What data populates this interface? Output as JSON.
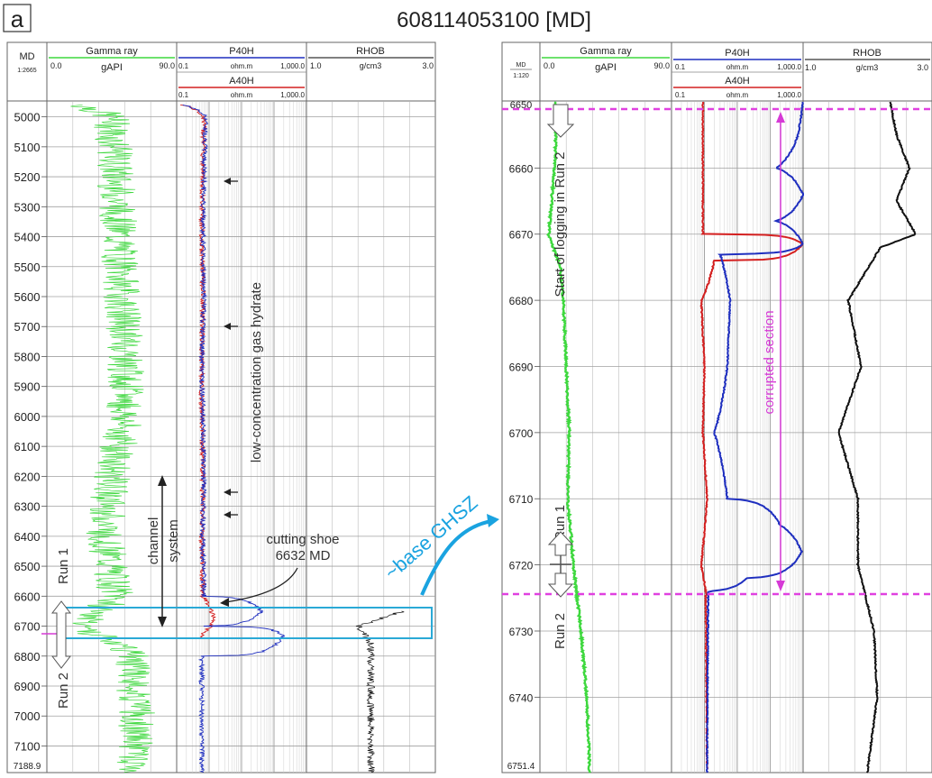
{
  "panel_label": "a",
  "title": "608114053100 [MD]",
  "colors": {
    "gamma": "#3ed83e",
    "p40h": "#1f2fbf",
    "a40h": "#d42020",
    "rhob": "#000000",
    "highlight_box": "#2aa9d6",
    "arrow_cyan": "#1aa3e0",
    "corrupted": "#d63ad6",
    "grid": "#9a9a9a"
  },
  "headers": {
    "md": "MD",
    "gamma_title": "Gamma ray",
    "gamma_unit": "gAPI",
    "gamma_min": "0.0",
    "gamma_max": "90.0",
    "p40h_title": "P40H",
    "a40h_title": "A40H",
    "res_unit": "ohm.m",
    "res_min": "0.1",
    "res_max": "1,000.0",
    "rhob_title": "RHOB",
    "rhob_unit": "g/cm3",
    "rhob_min": "1.0",
    "rhob_max": "3.0"
  },
  "left": {
    "scale": "1:2665",
    "depth_ticks": [
      "5000",
      "5100",
      "5200",
      "5300",
      "5400",
      "5500",
      "5600",
      "5700",
      "5800",
      "5900",
      "6000",
      "6100",
      "6200",
      "6300",
      "6400",
      "6500",
      "6600",
      "6700",
      "6800",
      "6900",
      "7000",
      "7100"
    ],
    "bottom_depth": "7188.9",
    "annotations": {
      "hydrate": "low-concentration gas hydrate",
      "channel": "channel",
      "system": "system",
      "shoe_1": "cutting shoe",
      "shoe_2": "6632 MD",
      "run1": "Run 1",
      "run2": "Run 2",
      "ghsz": "~base GHSZ"
    }
  },
  "right": {
    "scale": "1:120",
    "top_depth": "6650",
    "depth_ticks": [
      "6660",
      "6670",
      "6680",
      "6690",
      "6700",
      "6710",
      "6720",
      "6730",
      "6740"
    ],
    "bottom_depth": "6751.4",
    "annotations": {
      "start_logging": "Start of logging in Run 2",
      "corrupted": "corrupted section",
      "run1": "Run 1",
      "run2": "Run 2"
    }
  },
  "chart_data": [
    {
      "type": "line",
      "title": "608114053100 [MD]",
      "y_axis": "MD",
      "ylim": [
        4950,
        7188.9
      ],
      "series": [
        {
          "name": "Gamma ray",
          "unit": "gAPI",
          "xlim": [
            0,
            90
          ],
          "y": [
            4960,
            5000,
            5200,
            5400,
            5600,
            5800,
            6000,
            6200,
            6400,
            6600,
            6700,
            6800,
            7000,
            7188
          ],
          "x": [
            25,
            45,
            48,
            50,
            52,
            55,
            54,
            45,
            40,
            48,
            25,
            60,
            62,
            60
          ]
        },
        {
          "name": "P40H",
          "unit": "ohm.m",
          "scale": "log",
          "xlim": [
            0.1,
            1000
          ],
          "y": [
            4960,
            5000,
            5200,
            5400,
            5600,
            5800,
            6000,
            6200,
            6400,
            6600,
            6650,
            6700,
            6730,
            6800,
            7188
          ],
          "x": [
            0.15,
            0.8,
            0.7,
            0.65,
            0.7,
            0.6,
            0.65,
            0.7,
            0.65,
            0.7,
            40,
            0.8,
            200,
            0.6,
            0.6
          ]
        },
        {
          "name": "A40H",
          "unit": "ohm.m",
          "scale": "log",
          "xlim": [
            0.1,
            1000
          ],
          "y": [
            4960,
            5000,
            5200,
            5400,
            5600,
            5800,
            6000,
            6200,
            6400,
            6600,
            6680,
            6720,
            6740
          ],
          "x": [
            0.15,
            0.7,
            0.65,
            0.6,
            0.65,
            0.6,
            0.6,
            0.65,
            0.6,
            0.65,
            1.5,
            0.7,
            0.6
          ]
        },
        {
          "name": "RHOB",
          "unit": "g/cm3",
          "xlim": [
            1.0,
            3.0
          ],
          "y": [
            6650,
            6700,
            6760,
            7188
          ],
          "x": [
            2.5,
            1.8,
            2.0,
            2.0
          ]
        }
      ],
      "annotations": [
        "low-concentration gas hydrate",
        "channel system",
        "cutting shoe 6632 MD",
        "Run 1",
        "Run 2",
        "~base GHSZ"
      ]
    },
    {
      "type": "line",
      "y_axis": "MD",
      "ylim": [
        6650,
        6751.4
      ],
      "series": [
        {
          "name": "Gamma ray",
          "unit": "gAPI",
          "xlim": [
            0,
            90
          ],
          "y": [
            6650,
            6655,
            6660,
            6665,
            6670,
            6675,
            6680,
            6690,
            6700,
            6710,
            6720,
            6730,
            6740,
            6751
          ],
          "x": [
            11,
            11,
            10,
            8,
            6,
            14,
            16,
            18,
            20,
            19,
            23,
            28,
            32,
            34
          ]
        },
        {
          "name": "P40H",
          "unit": "ohm.m",
          "scale": "log",
          "xlim": [
            0.1,
            1000
          ],
          "y": [
            6650,
            6655,
            6660,
            6664,
            6668,
            6671.5,
            6673,
            6680,
            6690,
            6700,
            6710,
            6714,
            6718,
            6722,
            6724,
            6751
          ],
          "x": [
            1000,
            700,
            150,
            1000,
            150,
            1000,
            3,
            6,
            5,
            2,
            5,
            200,
            900,
            20,
            1.3,
            1.2
          ]
        },
        {
          "name": "A40H",
          "unit": "ohm.m",
          "scale": "log",
          "xlim": [
            0.1,
            1000
          ],
          "y": [
            6650,
            6660,
            6670,
            6671.5,
            6674,
            6680,
            6690,
            6700,
            6710,
            6720,
            6724,
            6751
          ],
          "x": [
            0.9,
            0.9,
            0.9,
            1000,
            2,
            0.8,
            1.0,
            0.9,
            1.2,
            0.8,
            1.1,
            1.2
          ]
        },
        {
          "name": "RHOB",
          "unit": "g/cm3",
          "xlim": [
            1.0,
            3.0
          ],
          "y": [
            6650,
            6655,
            6660,
            6665,
            6670,
            6672,
            6680,
            6690,
            6700,
            6710,
            6720,
            6730,
            6740,
            6751
          ],
          "x": [
            2.35,
            2.45,
            2.65,
            2.45,
            2.75,
            2.2,
            1.7,
            1.9,
            1.55,
            1.85,
            1.85,
            2.1,
            2.15,
            2.0
          ]
        }
      ],
      "annotations": [
        "Start of logging in Run 2",
        "corrupted section",
        "Run 1",
        "Run 2"
      ]
    }
  ]
}
